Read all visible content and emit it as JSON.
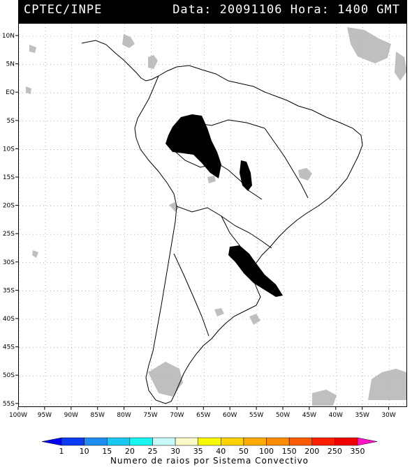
{
  "header": {
    "source": "CPTEC/INPE",
    "datetime": "Data: 20091106 Hora: 1400 GMT"
  },
  "map": {
    "lat_labels": [
      "10N",
      "5N",
      "EQ",
      "5S",
      "10S",
      "15S",
      "20S",
      "25S",
      "30S",
      "35S",
      "40S",
      "45S",
      "50S",
      "55S"
    ],
    "lon_labels": [
      "100W",
      "95W",
      "90W",
      "85W",
      "80W",
      "75W",
      "70W",
      "65W",
      "60W",
      "55W",
      "50W",
      "45W",
      "40W",
      "35W",
      "30W"
    ],
    "colors": {
      "blue_system": "#0a1ee6",
      "cyan_system": "#1ec8f0",
      "orange_system": "#ff8214",
      "cloud_gray": "#b4b4b4",
      "coastline": "#000000"
    }
  },
  "legend": {
    "values": [
      "1",
      "10",
      "15",
      "20",
      "25",
      "30",
      "35",
      "40",
      "50",
      "100",
      "150",
      "200",
      "250",
      "350"
    ],
    "colors": [
      "#0000ff",
      "#0a3cf5",
      "#1e8cf0",
      "#19c8f0",
      "#19f5f0",
      "#c8fafa",
      "#fafac8",
      "#fafa00",
      "#ffd200",
      "#ffaa00",
      "#ff8c00",
      "#ff5a00",
      "#ff1e00",
      "#f00000",
      "#ff14c8"
    ],
    "title": "Numero de raios por Sistema Convectivo"
  }
}
